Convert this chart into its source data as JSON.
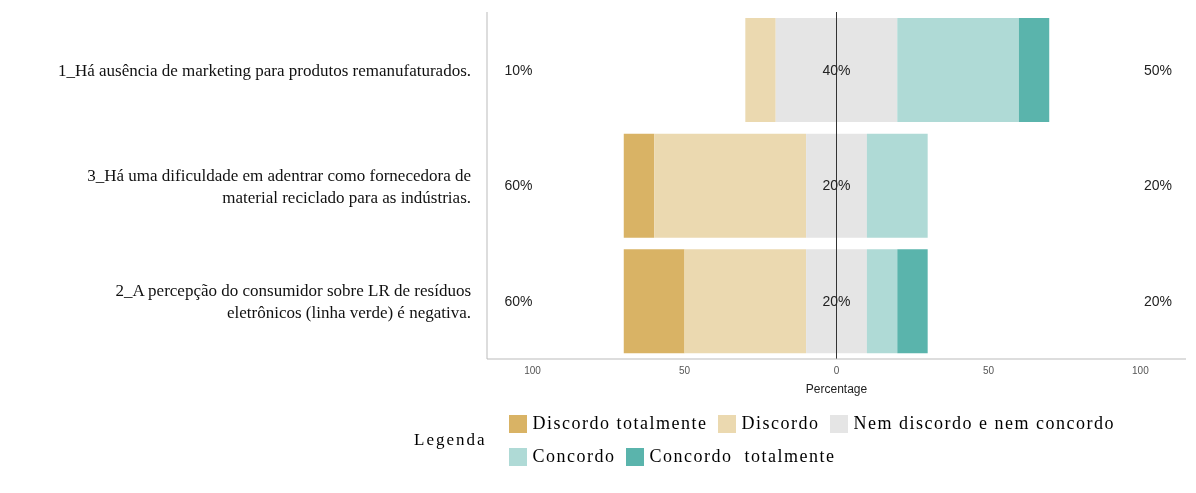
{
  "chart_data": {
    "type": "bar",
    "orientation": "horizontal",
    "xlabel": "Percentage",
    "legend_title": "Legenda",
    "legend": "bottom",
    "categories": [
      "1_Há ausência de marketing para produtos remanufaturados.",
      "3_Há uma dificuldade em adentrar como fornecedora de material reciclado para as indústrias.",
      "2_A percepção do consumidor sobre LR de resíduos eletrônicos (linha verde) é negativa."
    ],
    "series": [
      {
        "name": "Discordo totalmente",
        "color": "#d9b365",
        "base": [
          null,
          -70,
          -70
        ],
        "values": [
          null,
          10,
          20
        ]
      },
      {
        "name": "Discordo",
        "color": "#ebd9b0",
        "base": [
          -30,
          -60,
          -50
        ],
        "values": [
          10,
          50,
          40
        ]
      },
      {
        "name": "Nem discordo e nem concordo",
        "color": "#e5e5e5",
        "base": [
          -20,
          -10,
          -10
        ],
        "values": [
          40,
          20,
          20
        ]
      },
      {
        "name": "Concordo",
        "color": "#afdad6",
        "base": [
          20,
          10,
          10
        ],
        "values": [
          40,
          20,
          10
        ]
      },
      {
        "name": "Concordo  totalmente",
        "color": "#5ab4ac",
        "base": [
          60,
          null,
          20
        ],
        "values": [
          10,
          null,
          10
        ]
      }
    ],
    "xlim": [
      -115,
      115
    ],
    "xticks": [
      {
        "value": -100,
        "label": "100"
      },
      {
        "value": -50,
        "label": "50"
      },
      0,
      50,
      {
        "value": 100,
        "label": "100"
      }
    ],
    "ref_lines": [
      {
        "axis": "x",
        "value": 0,
        "color": "#333333"
      }
    ],
    "annotations": [
      "10%",
      "40%",
      "50%",
      "60%",
      "20%",
      "20%",
      "60%",
      "20%",
      "20%"
    ]
  }
}
